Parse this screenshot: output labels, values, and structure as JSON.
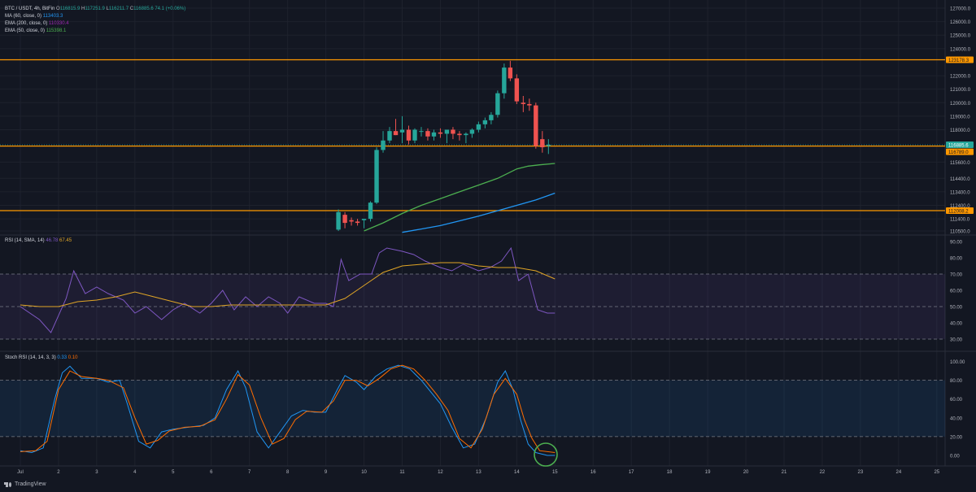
{
  "header": {
    "symbol": "BTC / USDT, 4h, BitFin",
    "ohlc": [
      {
        "k": "O",
        "v": "116815.9"
      },
      {
        "k": "H",
        "v": "117251.9"
      },
      {
        "k": "L",
        "v": "116211.7"
      },
      {
        "k": "C",
        "v": "116885.6"
      }
    ],
    "change": "74.1 (+0.06%)"
  },
  "indicators": [
    {
      "label": "MA (60, close, 0)",
      "value": "113403.3",
      "color": "#2196f3"
    },
    {
      "label": "EMA (200, close, 0)",
      "value": "110330.4",
      "color": "#9c27b0"
    },
    {
      "label": "EMA (50, close, 0)",
      "value": "115398.1",
      "color": "#4caf50"
    }
  ],
  "rsi_legend": {
    "label": "RSI (14, SMA, 14)",
    "value1": "46.78",
    "value2": "67.45"
  },
  "stoch_legend": {
    "label": "Stoch RSI (14, 14, 3, 3)",
    "value1": "0.33",
    "value2": "0.10"
  },
  "colors": {
    "up": "#26a69a",
    "down": "#ef5350",
    "level": "#ff9800",
    "ema50": "#4caf50",
    "ma60": "#2196f3",
    "rsi": "#7e57c2",
    "rsi_ma": "#e0a526",
    "stoch_k": "#2196f3",
    "stoch_d": "#ff6d00",
    "marker": "#4caf50"
  },
  "price_axis": {
    "ticks": [
      "127000.0",
      "126000.0",
      "125000.0",
      "124000.0",
      "122000.0",
      "121000.0",
      "120000.0",
      "119000.0",
      "118000.0",
      "115600.0",
      "114400.0",
      "113400.0",
      "112400.0",
      "111400.0",
      "110500.0"
    ],
    "level_labels": [
      {
        "price": 123178.3,
        "text": "123178.3",
        "style": "level"
      },
      {
        "price": 116885.6,
        "text": "116885.6",
        "style": "up"
      },
      {
        "price": 116789.0,
        "text": "116789.0",
        "style": "level"
      },
      {
        "price": 112008.2,
        "text": "112008.2",
        "style": "level"
      }
    ]
  },
  "rsi_axis": [
    "90.00",
    "80.00",
    "70.00",
    "60.00",
    "50.00",
    "40.00",
    "30.00"
  ],
  "stoch_axis": [
    "100.00",
    "80.00",
    "60.00",
    "40.00",
    "20.00",
    "0.00"
  ],
  "time_axis": [
    "Jul",
    "2",
    "3",
    "4",
    "5",
    "6",
    "7",
    "8",
    "9",
    "10",
    "11",
    "12",
    "13",
    "14",
    "15",
    "16",
    "17",
    "18",
    "19",
    "20",
    "21",
    "22",
    "23",
    "24",
    "25"
  ],
  "footer": {
    "brand": "TradingView"
  },
  "chart_data": {
    "type": "candlestick",
    "interval": "4h",
    "horizontal_levels": [
      123178.3,
      116789.0,
      112008.2
    ],
    "candles": [
      {
        "day": 9.33,
        "o": 110600,
        "h": 112100,
        "l": 110500,
        "c": 111900
      },
      {
        "day": 9.5,
        "o": 111700,
        "h": 111900,
        "l": 110700,
        "c": 111100
      },
      {
        "day": 9.67,
        "o": 111300,
        "h": 111500,
        "l": 110900,
        "c": 111200
      },
      {
        "day": 9.83,
        "o": 111200,
        "h": 111400,
        "l": 110900,
        "c": 111100
      },
      {
        "day": 10.0,
        "o": 111300,
        "h": 111400,
        "l": 110700,
        "c": 111400
      },
      {
        "day": 10.17,
        "o": 111400,
        "h": 112700,
        "l": 111200,
        "c": 112600
      },
      {
        "day": 10.33,
        "o": 112600,
        "h": 116700,
        "l": 112500,
        "c": 116500
      },
      {
        "day": 10.5,
        "o": 116500,
        "h": 117900,
        "l": 116300,
        "c": 117200
      },
      {
        "day": 10.67,
        "o": 117200,
        "h": 118200,
        "l": 117000,
        "c": 117900
      },
      {
        "day": 10.83,
        "o": 117900,
        "h": 118800,
        "l": 117600,
        "c": 117600
      },
      {
        "day": 11.0,
        "o": 117800,
        "h": 119000,
        "l": 117000,
        "c": 118000
      },
      {
        "day": 11.17,
        "o": 118000,
        "h": 118300,
        "l": 116900,
        "c": 117200
      },
      {
        "day": 11.33,
        "o": 117200,
        "h": 118100,
        "l": 117000,
        "c": 118000
      },
      {
        "day": 11.5,
        "o": 117900,
        "h": 118200,
        "l": 117500,
        "c": 117900
      },
      {
        "day": 11.67,
        "o": 117900,
        "h": 118100,
        "l": 117200,
        "c": 117500
      },
      {
        "day": 11.83,
        "o": 117500,
        "h": 118000,
        "l": 117200,
        "c": 117800
      },
      {
        "day": 12.0,
        "o": 117800,
        "h": 118100,
        "l": 117400,
        "c": 117700
      },
      {
        "day": 12.17,
        "o": 117700,
        "h": 118000,
        "l": 117000,
        "c": 118000
      },
      {
        "day": 12.33,
        "o": 118000,
        "h": 118200,
        "l": 117300,
        "c": 117700
      },
      {
        "day": 12.5,
        "o": 117700,
        "h": 117900,
        "l": 117200,
        "c": 117600
      },
      {
        "day": 12.67,
        "o": 117600,
        "h": 117800,
        "l": 117000,
        "c": 117700
      },
      {
        "day": 12.83,
        "o": 117700,
        "h": 118100,
        "l": 117400,
        "c": 118000
      },
      {
        "day": 13.0,
        "o": 118000,
        "h": 118600,
        "l": 117800,
        "c": 118400
      },
      {
        "day": 13.17,
        "o": 118400,
        "h": 118900,
        "l": 118100,
        "c": 118700
      },
      {
        "day": 13.33,
        "o": 118700,
        "h": 119300,
        "l": 118400,
        "c": 119100
      },
      {
        "day": 13.5,
        "o": 119100,
        "h": 120900,
        "l": 118900,
        "c": 120700
      },
      {
        "day": 13.67,
        "o": 120700,
        "h": 122900,
        "l": 120300,
        "c": 122600
      },
      {
        "day": 13.83,
        "o": 122600,
        "h": 123100,
        "l": 121600,
        "c": 121800
      },
      {
        "day": 14.0,
        "o": 121800,
        "h": 122100,
        "l": 119900,
        "c": 120100
      },
      {
        "day": 14.17,
        "o": 120000,
        "h": 120500,
        "l": 119300,
        "c": 119900
      },
      {
        "day": 14.33,
        "o": 119900,
        "h": 120300,
        "l": 119400,
        "c": 119800
      },
      {
        "day": 14.5,
        "o": 119800,
        "h": 120000,
        "l": 116600,
        "c": 116800
      },
      {
        "day": 14.67,
        "o": 117300,
        "h": 117900,
        "l": 116300,
        "c": 116700
      },
      {
        "day": 14.83,
        "o": 116800,
        "h": 117300,
        "l": 116200,
        "c": 116890
      }
    ],
    "series": [
      {
        "name": "EMA (50, close, 0)",
        "x": [
          10.0,
          10.5,
          11.0,
          11.5,
          12.0,
          12.5,
          13.0,
          13.5,
          14.0,
          14.3,
          14.6,
          15.0
        ],
        "y": [
          110500,
          111100,
          111800,
          112400,
          112900,
          113400,
          113900,
          114400,
          115100,
          115300,
          115400,
          115500
        ]
      },
      {
        "name": "MA (60, close, 0)",
        "x": [
          11.0,
          11.5,
          12.0,
          12.5,
          13.0,
          13.5,
          14.0,
          14.5,
          15.0
        ],
        "y": [
          110400,
          110650,
          110900,
          111250,
          111600,
          112000,
          112400,
          112800,
          113300
        ]
      }
    ]
  }
}
